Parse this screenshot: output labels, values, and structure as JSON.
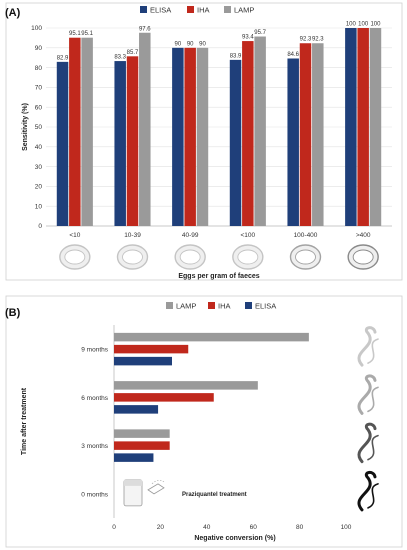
{
  "panel_a_label": "(A)",
  "panel_b_label": "(B)",
  "chart_data": [
    {
      "type": "bar",
      "title": "",
      "xlabel": "Eggs per gram of faeces",
      "ylabel": "Sensitivity (%)",
      "ylim": [
        0,
        100
      ],
      "yticks": [
        0,
        10,
        20,
        30,
        40,
        50,
        60,
        70,
        80,
        90,
        100
      ],
      "grid": true,
      "legend_position": "top-center",
      "categories": [
        "<10",
        "10-39",
        "40-99",
        "<100",
        "100-400",
        ">400"
      ],
      "series": [
        {
          "name": "ELISA",
          "color": "#1f3f7a",
          "values": [
            82.9,
            83.3,
            90,
            83.9,
            84.6,
            100
          ]
        },
        {
          "name": "IHA",
          "color": "#c0281c",
          "values": [
            95.1,
            85.7,
            90,
            93.4,
            92.3,
            100
          ]
        },
        {
          "name": "LAMP",
          "color": "#9a9a9a",
          "values": [
            95.1,
            97.6,
            90,
            95.7,
            92.3,
            100
          ]
        }
      ]
    },
    {
      "type": "bar",
      "orientation": "horizontal",
      "title": "",
      "xlabel": "Negative conversion (%)",
      "ylabel": "Time after treatment",
      "xlim": [
        0,
        100
      ],
      "xticks": [
        0,
        20,
        40,
        60,
        80,
        100
      ],
      "grid": false,
      "legend_position": "top-center",
      "categories": [
        "9 months",
        "6 months",
        "3 months",
        "0 months"
      ],
      "annotation": "Praziquantel treatment",
      "series": [
        {
          "name": "LAMP",
          "color": "#9a9a9a",
          "values": [
            84,
            62,
            24,
            0
          ]
        },
        {
          "name": "IHA",
          "color": "#c0281c",
          "values": [
            32,
            43,
            24,
            0
          ]
        },
        {
          "name": "ELISA",
          "color": "#1f3f7a",
          "values": [
            25,
            19,
            17,
            0
          ]
        }
      ]
    }
  ]
}
